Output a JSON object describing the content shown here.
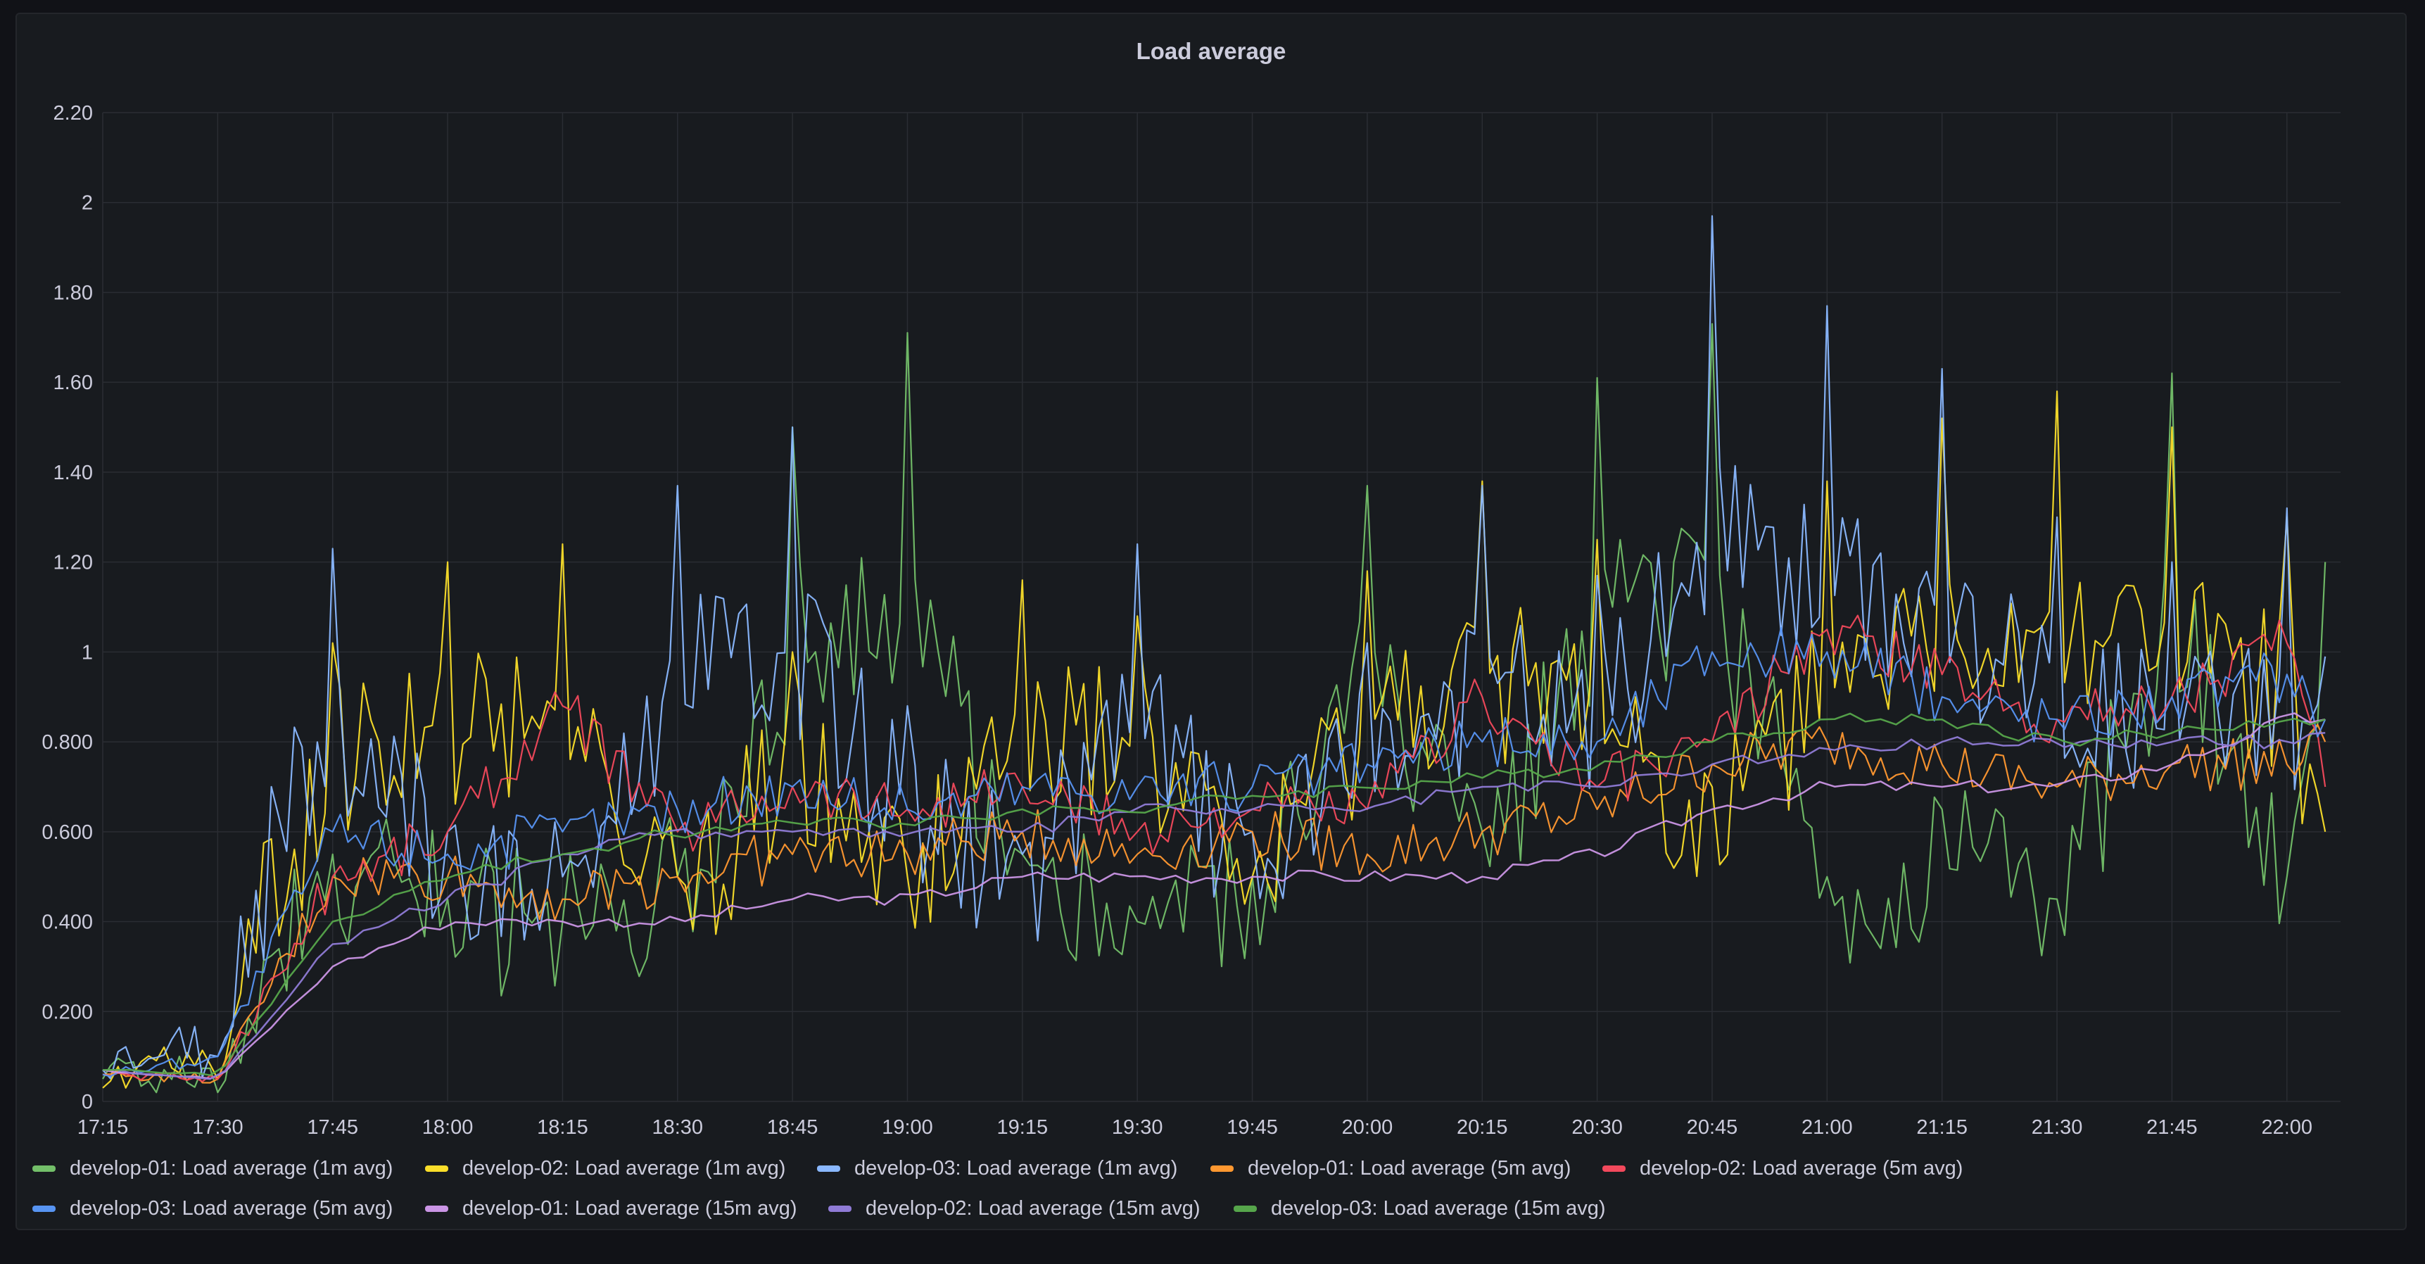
{
  "panel": {
    "title": "Load average"
  },
  "chart_data": {
    "type": "line",
    "title": "Load average",
    "xlabel": "",
    "ylabel": "",
    "x_ticks": [
      "17:15",
      "17:30",
      "17:45",
      "18:00",
      "18:15",
      "18:30",
      "18:45",
      "19:00",
      "19:15",
      "19:30",
      "19:45",
      "20:00",
      "20:15",
      "20:30",
      "20:45",
      "21:00",
      "21:15",
      "21:30",
      "21:45",
      "22:00"
    ],
    "y_ticks": [
      "0",
      "0.200",
      "0.400",
      "0.600",
      "0.800",
      "1",
      "1.20",
      "1.40",
      "1.60",
      "1.80",
      "2",
      "2.20"
    ],
    "ylim": [
      0,
      2.2
    ],
    "xlim": [
      "17:15",
      "22:07"
    ],
    "grid": true,
    "legend": "bottom",
    "series": [
      {
        "name": "develop-01: Load average (1m avg)",
        "color": "#73bf69",
        "x": [
          "17:15",
          "17:30",
          "17:45",
          "18:00",
          "18:15",
          "18:30",
          "18:45",
          "19:00",
          "19:15",
          "19:30",
          "19:45",
          "20:00",
          "20:15",
          "20:30",
          "20:45",
          "21:00",
          "21:15",
          "21:30",
          "21:45",
          "22:00",
          "22:05"
        ],
        "values": [
          0.05,
          0.02,
          0.55,
          0.45,
          0.4,
          0.5,
          1.5,
          1.71,
          0.55,
          0.4,
          0.5,
          1.37,
          0.6,
          1.61,
          1.73,
          0.5,
          0.65,
          0.45,
          1.62,
          0.5,
          1.2
        ]
      },
      {
        "name": "develop-02: Load average (1m avg)",
        "color": "#fade2a",
        "x": [
          "17:15",
          "17:30",
          "17:45",
          "18:00",
          "18:15",
          "18:30",
          "18:45",
          "19:00",
          "19:15",
          "19:30",
          "19:45",
          "20:00",
          "20:15",
          "20:30",
          "20:45",
          "21:00",
          "21:15",
          "21:30",
          "21:45",
          "22:00",
          "22:05"
        ],
        "values": [
          0.03,
          0.05,
          1.02,
          1.2,
          1.24,
          0.5,
          1.0,
          0.5,
          1.16,
          1.08,
          0.5,
          1.18,
          1.38,
          1.25,
          0.7,
          1.38,
          1.52,
          1.58,
          1.5,
          1.3,
          0.6
        ]
      },
      {
        "name": "develop-03: Load average (1m avg)",
        "color": "#8ab8ff",
        "x": [
          "17:15",
          "17:30",
          "17:45",
          "18:00",
          "18:15",
          "18:30",
          "18:45",
          "19:00",
          "19:15",
          "19:30",
          "19:45",
          "20:00",
          "20:15",
          "20:30",
          "20:45",
          "21:00",
          "21:15",
          "21:30",
          "21:45",
          "22:00",
          "22:05"
        ],
        "values": [
          0.07,
          0.1,
          1.23,
          0.6,
          0.5,
          1.37,
          1.5,
          0.88,
          0.55,
          1.24,
          0.6,
          1.02,
          1.37,
          1.17,
          1.97,
          1.77,
          1.63,
          1.3,
          1.2,
          1.32,
          0.99
        ]
      },
      {
        "name": "develop-01: Load average (5m avg)",
        "color": "#ff9830",
        "x": [
          "17:15",
          "17:30",
          "17:45",
          "18:00",
          "18:15",
          "18:30",
          "18:45",
          "19:00",
          "19:15",
          "19:30",
          "19:45",
          "20:00",
          "20:15",
          "20:30",
          "20:45",
          "21:00",
          "21:15",
          "21:30",
          "21:45",
          "22:00",
          "22:05"
        ],
        "values": [
          0.06,
          0.05,
          0.5,
          0.5,
          0.45,
          0.5,
          0.55,
          0.55,
          0.6,
          0.55,
          0.6,
          0.55,
          0.6,
          0.65,
          0.75,
          0.8,
          0.75,
          0.7,
          0.75,
          0.75,
          0.8
        ]
      },
      {
        "name": "develop-02: Load average (5m avg)",
        "color": "#f2495c",
        "x": [
          "17:15",
          "17:30",
          "17:45",
          "18:00",
          "18:15",
          "18:30",
          "18:45",
          "19:00",
          "19:15",
          "19:30",
          "19:45",
          "20:00",
          "20:15",
          "20:30",
          "20:45",
          "21:00",
          "21:15",
          "21:30",
          "21:45",
          "22:00",
          "22:05"
        ],
        "values": [
          0.06,
          0.05,
          0.5,
          0.6,
          0.88,
          0.6,
          0.7,
          0.65,
          0.7,
          0.6,
          0.65,
          0.65,
          0.9,
          0.7,
          0.8,
          1.05,
          0.95,
          0.85,
          0.9,
          1.02,
          0.7
        ]
      },
      {
        "name": "develop-03: Load average (5m avg)",
        "color": "#5794f2",
        "x": [
          "17:15",
          "17:30",
          "17:45",
          "18:00",
          "18:15",
          "18:30",
          "18:45",
          "19:00",
          "19:15",
          "19:30",
          "19:45",
          "20:00",
          "20:15",
          "20:30",
          "20:45",
          "21:00",
          "21:15",
          "21:30",
          "21:45",
          "22:00",
          "22:05"
        ],
        "values": [
          0.06,
          0.1,
          0.6,
          0.55,
          0.6,
          0.65,
          0.7,
          0.65,
          0.7,
          0.7,
          0.7,
          0.75,
          0.8,
          0.8,
          1.0,
          1.0,
          0.9,
          0.85,
          0.9,
          0.95,
          0.85
        ]
      },
      {
        "name": "develop-01: Load average (15m avg)",
        "color": "#ca95e5",
        "x": [
          "17:15",
          "17:30",
          "17:45",
          "18:00",
          "18:15",
          "18:30",
          "18:45",
          "19:00",
          "19:15",
          "19:30",
          "19:45",
          "20:00",
          "20:15",
          "20:30",
          "20:45",
          "21:00",
          "21:15",
          "21:30",
          "21:45",
          "22:00",
          "22:05"
        ],
        "values": [
          0.07,
          0.05,
          0.3,
          0.4,
          0.4,
          0.4,
          0.45,
          0.45,
          0.5,
          0.5,
          0.5,
          0.5,
          0.5,
          0.55,
          0.65,
          0.7,
          0.7,
          0.7,
          0.75,
          0.85,
          0.85
        ]
      },
      {
        "name": "develop-02: Load average (15m avg)",
        "color": "#8f7bd6",
        "x": [
          "17:15",
          "17:30",
          "17:45",
          "18:00",
          "18:15",
          "18:30",
          "18:45",
          "19:00",
          "19:15",
          "19:30",
          "19:45",
          "20:00",
          "20:15",
          "20:30",
          "20:45",
          "21:00",
          "21:15",
          "21:30",
          "21:45",
          "22:00",
          "22:05"
        ],
        "values": [
          0.07,
          0.05,
          0.35,
          0.45,
          0.55,
          0.6,
          0.6,
          0.6,
          0.6,
          0.65,
          0.65,
          0.65,
          0.7,
          0.7,
          0.75,
          0.78,
          0.8,
          0.8,
          0.8,
          0.8,
          0.82
        ]
      },
      {
        "name": "develop-03: Load average (15m avg)",
        "color": "#56a64b",
        "x": [
          "17:15",
          "17:30",
          "17:45",
          "18:00",
          "18:15",
          "18:30",
          "18:45",
          "19:00",
          "19:15",
          "19:30",
          "19:45",
          "20:00",
          "20:15",
          "20:30",
          "20:45",
          "21:00",
          "21:15",
          "21:30",
          "21:45",
          "22:00",
          "22:05"
        ],
        "values": [
          0.07,
          0.06,
          0.4,
          0.5,
          0.55,
          0.6,
          0.62,
          0.62,
          0.65,
          0.65,
          0.68,
          0.7,
          0.72,
          0.75,
          0.8,
          0.85,
          0.85,
          0.8,
          0.82,
          0.85,
          0.85
        ]
      }
    ]
  }
}
